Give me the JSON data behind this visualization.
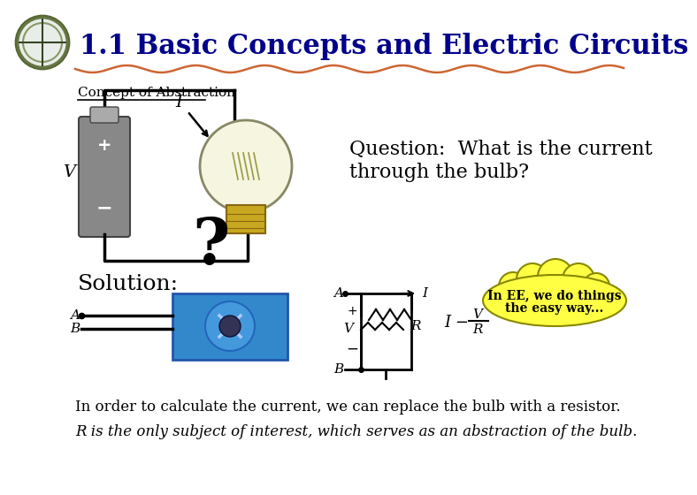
{
  "title": "1.1 Basic Concepts and Electric Circuits",
  "subtitle": "Concept of Abstraction",
  "question_line1": "Question:  What is the current",
  "question_line2": "through the bulb?",
  "solution_label": "Solution:",
  "bubble_line1": "In EE, we do things",
  "bubble_line2": "the easy way...",
  "line1": "In order to calculate the current, we can replace the bulb with a resistor.",
  "line2": "R is the only subject of interest, which serves as an abstraction of the bulb.",
  "bg_color": "#ffffff",
  "title_color": "#00008B",
  "wave_color": "#cc6633",
  "battery_color": "#888888",
  "bulb_color": "#f5f5e0",
  "blue_bulb_color": "#3388cc",
  "bubble_color": "#ffff44",
  "text_color": "#000000"
}
